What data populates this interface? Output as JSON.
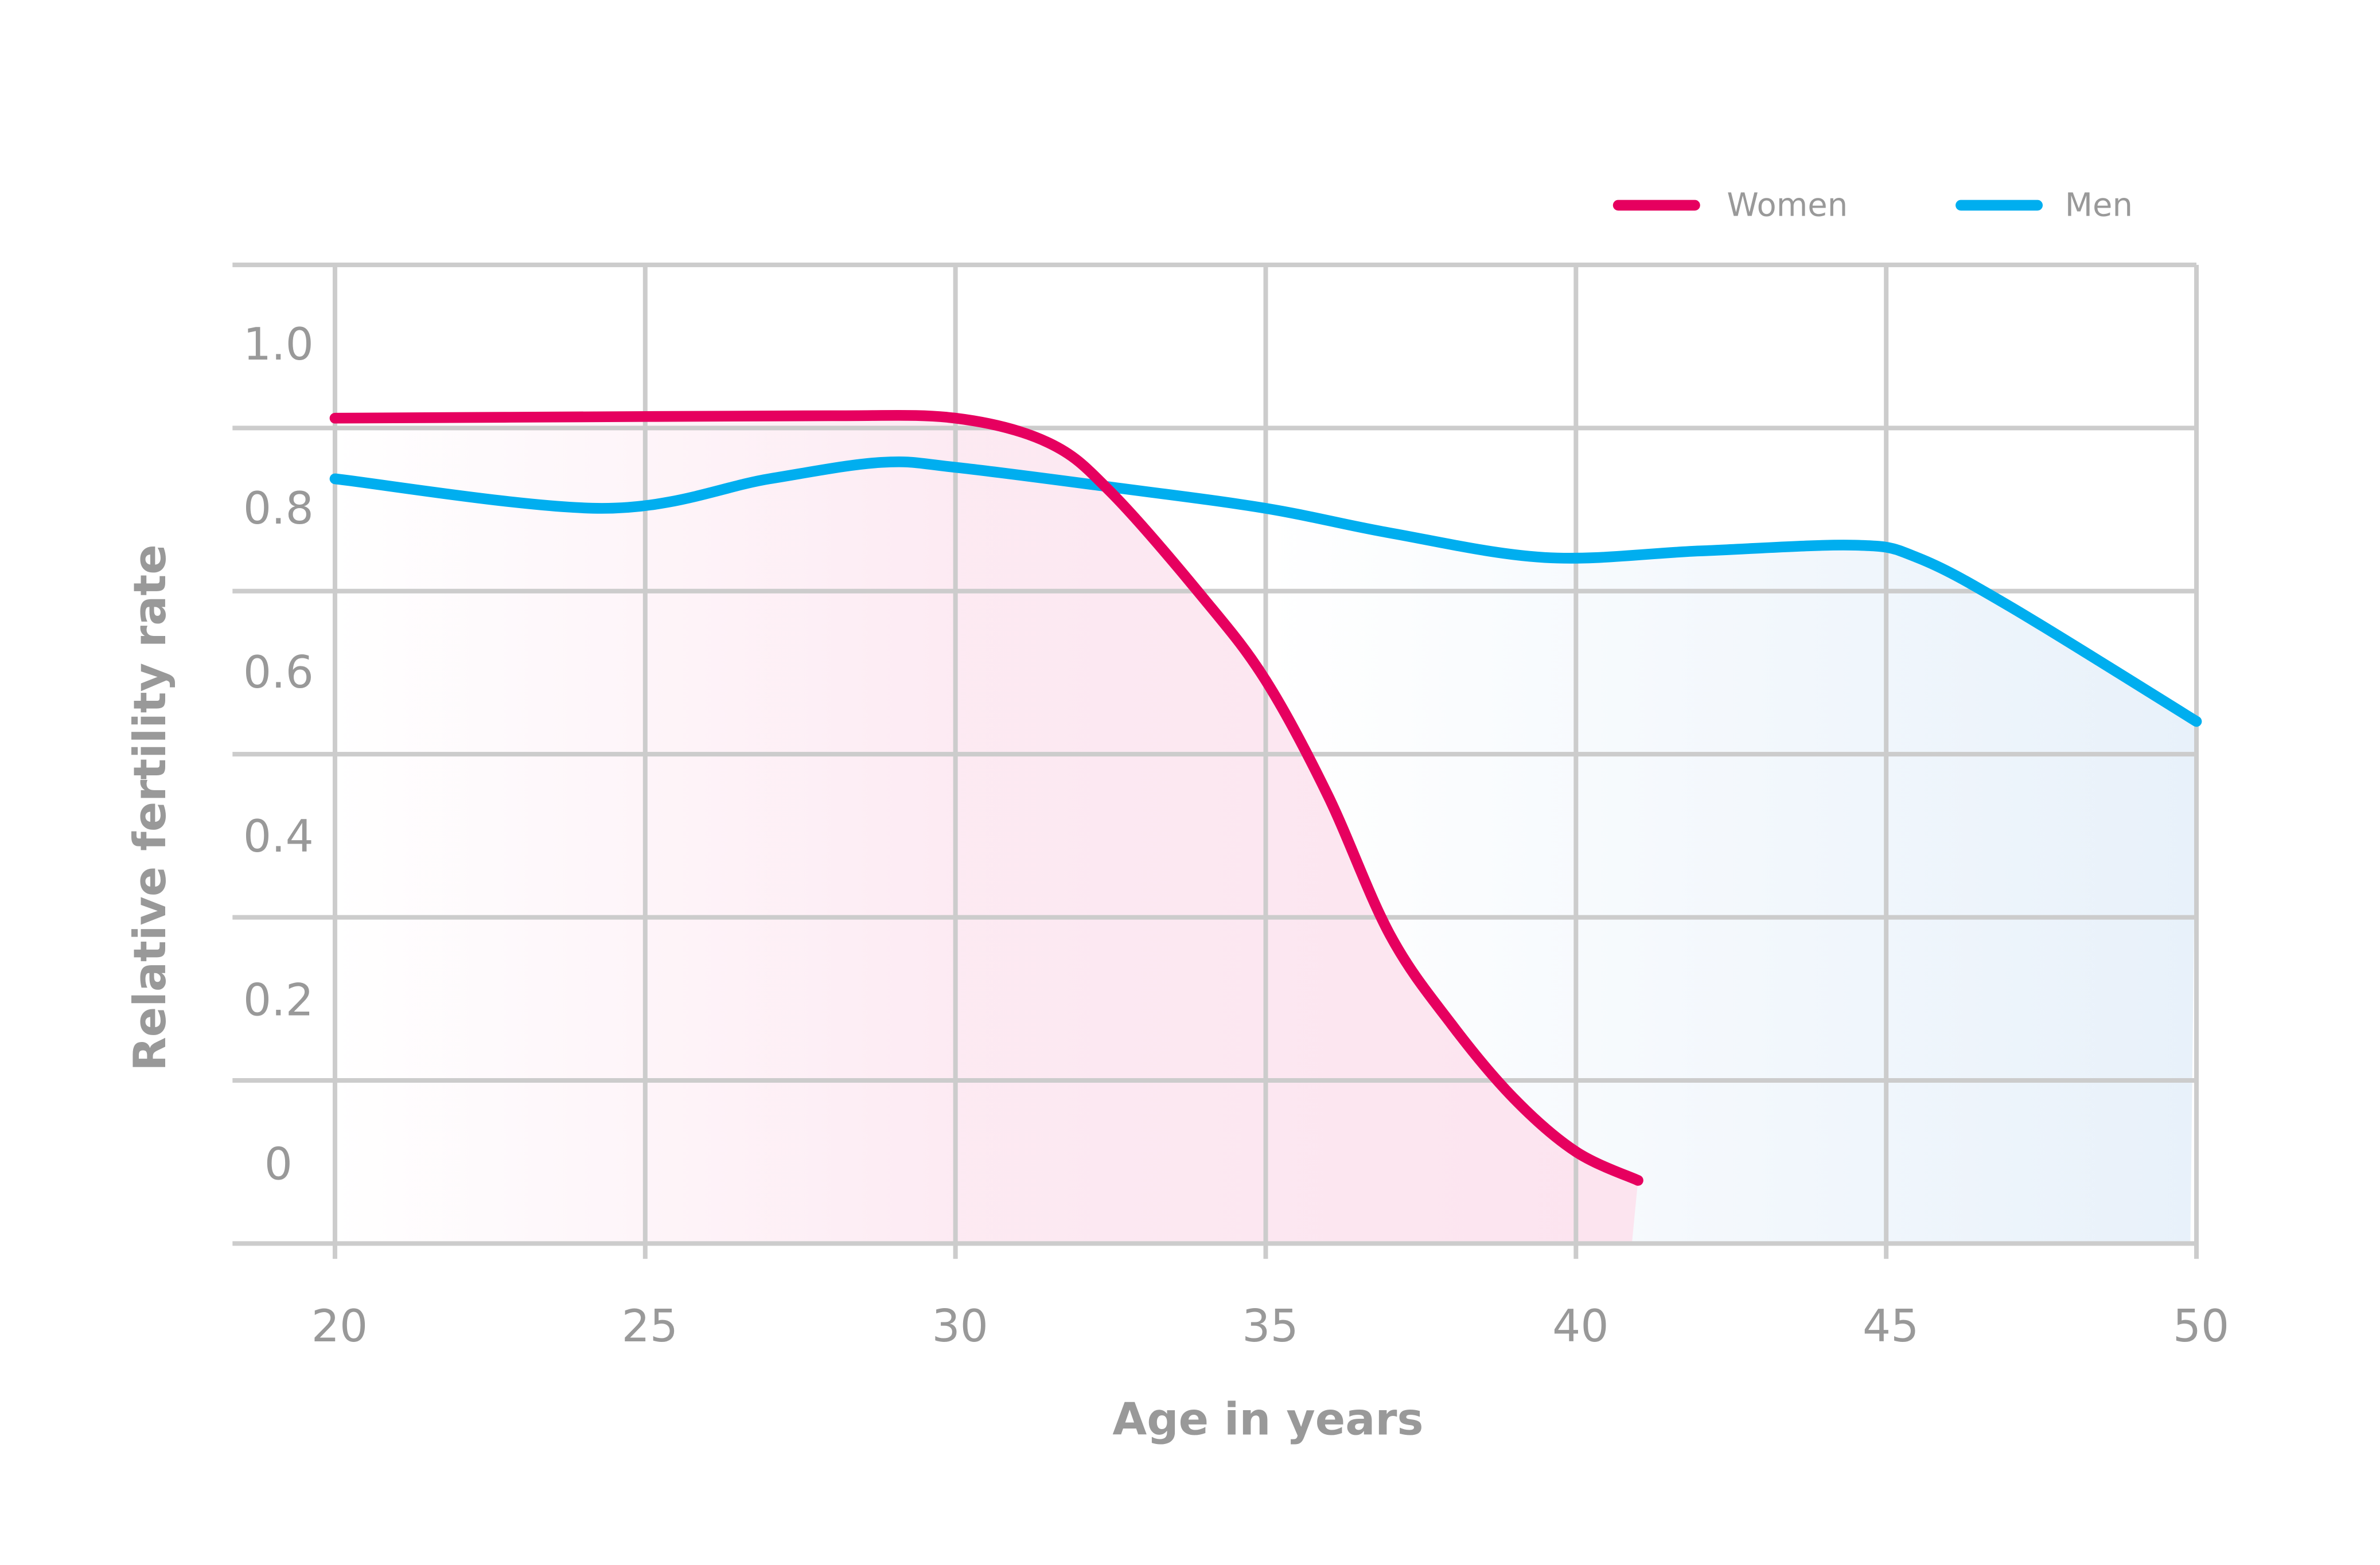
{
  "chart_data": {
    "type": "line",
    "title": "",
    "xlabel": "Age in years",
    "ylabel": "Relative fertility rate",
    "xlim": [
      20,
      50
    ],
    "ylim": [
      0,
      1.0
    ],
    "x_ticks": [
      "20",
      "25",
      "30",
      "35",
      "40",
      "45",
      "50"
    ],
    "y_ticks": [
      "1.0",
      "0.8",
      "0.6",
      "0.4",
      "0.2",
      "0"
    ],
    "grid": true,
    "legend_position": "top-right",
    "series": [
      {
        "name": "Women",
        "color": "#e6005f",
        "fill": "#fce4ef",
        "x": [
          20,
          25,
          28,
          30,
          31.5,
          32.5,
          34,
          35,
          36,
          37,
          38,
          39,
          40,
          41
        ],
        "y": [
          0.91,
          0.912,
          0.913,
          0.91,
          0.88,
          0.82,
          0.69,
          0.59,
          0.45,
          0.28,
          0.17,
          0.08,
          0.015,
          -0.02
        ]
      },
      {
        "name": "Men",
        "color": "#00aeef",
        "fill": "#e8f1fa",
        "x": [
          20,
          24.3,
          27,
          28.8,
          30,
          32.5,
          35,
          37,
          39.5,
          42,
          44.5,
          45.5,
          47,
          50
        ],
        "y": [
          0.836,
          0.8,
          0.836,
          0.856,
          0.85,
          0.826,
          0.8,
          0.77,
          0.74,
          0.748,
          0.755,
          0.74,
          0.68,
          0.54
        ]
      }
    ]
  }
}
